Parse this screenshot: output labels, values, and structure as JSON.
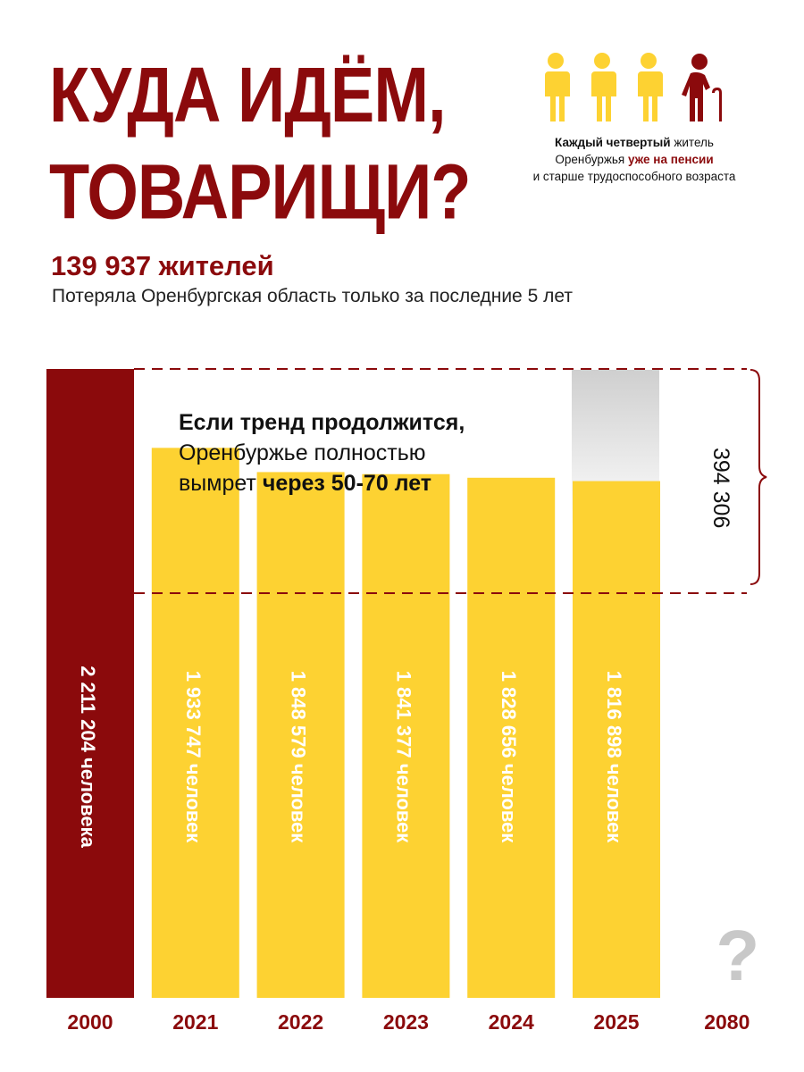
{
  "title": {
    "line1": "КУДА ИДЁМ,",
    "line2": "ТОВАРИЩИ?"
  },
  "colors": {
    "dark_red": "#8b0a0c",
    "yellow": "#fdd232",
    "gray": "#c8c8c8",
    "text": "#111111"
  },
  "people_icons": [
    "person-icon",
    "person-icon",
    "person-icon",
    "elderly-person-with-cane-icon"
  ],
  "note": {
    "part1_bold": "Каждый четвертый",
    "part1_rest": " житель",
    "part2": "Оренбуржья ",
    "part2_bold_red": "уже на пенсии",
    "part3": "и старше трудоспособного возраста"
  },
  "headline": "139 937 жителей",
  "subline": "Потеряла Оренбургская область только за последние 5 лет",
  "trend": {
    "bold": "Если тренд продолжится,",
    "line2": "Оренбуржье полностью",
    "line3_prefix": "вымрет ",
    "line3_bold": "через 50-70 лет"
  },
  "gap_label": "394 306",
  "chart_data": {
    "type": "bar",
    "categories": [
      "2000",
      "2021",
      "2022",
      "2023",
      "2024",
      "2025",
      "2080"
    ],
    "values": [
      2211204,
      1933747,
      1848579,
      1841377,
      1828656,
      1816898,
      null
    ],
    "bar_labels": [
      "2 211 204 человека",
      "1 933 747 человек",
      "1 848 579 человек",
      "1 841 377 человек",
      "1 828 656 человек",
      "1 816 898 человек",
      "?"
    ],
    "bar_colors": [
      "#8b0a0c",
      "#fdd232",
      "#fdd232",
      "#fdd232",
      "#fdd232",
      "#fdd232",
      null
    ],
    "annotation": {
      "from": "2000",
      "to": "2025",
      "difference": "394 306"
    }
  }
}
